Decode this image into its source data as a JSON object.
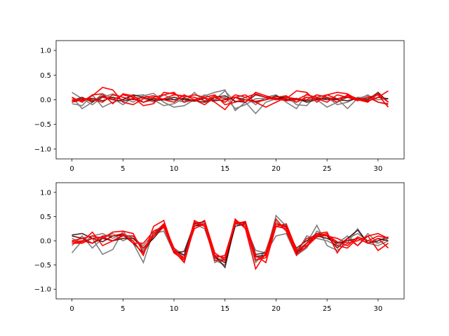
{
  "colors": {
    "series_gray": "#7f7f7f",
    "series_dark": "#3a0000",
    "series_red": "#ff0000",
    "axes": "#000000",
    "background": "#ffffff"
  },
  "chart_data": [
    {
      "type": "line",
      "title": "",
      "xlabel": "",
      "ylabel": "",
      "xlim": [
        -1.55,
        32.55
      ],
      "ylim": [
        -1.2,
        1.2
      ],
      "xticks": [
        0,
        5,
        10,
        15,
        20,
        25,
        30
      ],
      "yticks": [
        -1.0,
        -0.5,
        0.0,
        0.5,
        1.0
      ],
      "grid": false,
      "x": [
        0,
        1,
        2,
        3,
        4,
        5,
        6,
        7,
        8,
        9,
        10,
        11,
        12,
        13,
        14,
        15,
        16,
        17,
        18,
        19,
        20,
        21,
        22,
        23,
        24,
        25,
        26,
        27,
        28,
        29,
        30,
        31
      ],
      "series": [
        {
          "color": "gray",
          "values": [
            0.15,
            0.02,
            -0.1,
            0.05,
            0.12,
            0.05,
            -0.05,
            0.08,
            0.13,
            -0.05,
            -0.15,
            -0.12,
            0.0,
            0.08,
            0.15,
            0.2,
            -0.22,
            -0.05,
            -0.28,
            -0.05,
            0.02,
            0.0,
            -0.05,
            0.05,
            0.03,
            0.05,
            -0.1,
            -0.05,
            0.05,
            0.02,
            0.1,
            -0.05
          ]
        },
        {
          "color": "gray",
          "values": [
            0.05,
            -0.18,
            -0.05,
            0.12,
            0.03,
            -0.1,
            0.05,
            0.03,
            -0.05,
            0.1,
            0.0,
            -0.05,
            0.15,
            -0.05,
            0.0,
            0.05,
            -0.18,
            -0.1,
            0.02,
            0.03,
            0.0,
            0.08,
            -0.1,
            -0.12,
            0.1,
            0.05,
            0.02,
            -0.18,
            0.03,
            0.08,
            0.0,
            0.02
          ]
        },
        {
          "color": "gray",
          "values": [
            -0.08,
            -0.12,
            0.1,
            -0.15,
            -0.05,
            0.0,
            0.08,
            0.1,
            0.0,
            -0.12,
            -0.08,
            0.03,
            -0.02,
            0.1,
            0.0,
            0.18,
            -0.05,
            0.05,
            -0.1,
            0.05,
            0.1,
            -0.05,
            -0.18,
            0.12,
            0.0,
            -0.15,
            -0.05,
            0.05,
            0.0,
            0.1,
            -0.05,
            -0.1
          ]
        },
        {
          "color": "dark",
          "values": [
            -0.05,
            0.0,
            0.03,
            -0.02,
            0.05,
            0.0,
            0.1,
            0.05,
            -0.02,
            0.0,
            0.0,
            0.03,
            -0.02,
            -0.05,
            0.05,
            0.08,
            -0.03,
            -0.05,
            0.1,
            0.05,
            0.02,
            0.05,
            0.0,
            -0.02,
            0.03,
            0.0,
            0.02,
            0.05,
            0.0,
            -0.03,
            0.05,
            0.02
          ]
        },
        {
          "color": "dark",
          "values": [
            -0.02,
            0.05,
            -0.05,
            0.08,
            0.0,
            -0.03,
            0.02,
            -0.05,
            0.03,
            0.0,
            0.05,
            0.0,
            -0.03,
            0.03,
            -0.02,
            0.0,
            0.05,
            0.0,
            -0.03,
            0.0,
            0.08,
            0.0,
            0.03,
            -0.05,
            0.0,
            0.03,
            0.0,
            -0.02,
            0.03,
            0.0,
            0.15,
            -0.05
          ]
        },
        {
          "color": "red",
          "values": [
            0.0,
            -0.02,
            0.08,
            0.25,
            0.2,
            -0.05,
            -0.1,
            0.02,
            0.05,
            0.1,
            0.15,
            -0.05,
            0.0,
            -0.1,
            0.05,
            -0.05,
            0.1,
            0.05,
            0.12,
            0.05,
            0.0,
            0.02,
            0.18,
            0.15,
            -0.05,
            0.1,
            0.15,
            0.12,
            0.0,
            0.05,
            0.1,
            -0.15
          ]
        },
        {
          "color": "red",
          "values": [
            -0.05,
            0.03,
            -0.02,
            0.05,
            0.0,
            0.1,
            0.05,
            -0.12,
            -0.08,
            0.15,
            0.12,
            0.05,
            0.1,
            0.05,
            -0.05,
            -0.2,
            0.05,
            0.1,
            -0.05,
            -0.15,
            -0.05,
            0.05,
            0.02,
            0.0,
            0.1,
            0.05,
            -0.05,
            0.1,
            0.02,
            -0.02,
            0.05,
            0.18
          ]
        },
        {
          "color": "red",
          "values": [
            0.05,
            -0.05,
            0.1,
            0.12,
            -0.08,
            0.12,
            0.08,
            -0.05,
            0.0,
            0.02,
            0.1,
            0.08,
            0.05,
            -0.02,
            0.08,
            0.02,
            0.05,
            -0.05,
            0.15,
            0.08,
            0.02,
            -0.02,
            0.0,
            0.1,
            0.05,
            0.1,
            0.02,
            0.08,
            0.0,
            -0.05,
            0.12,
            -0.05
          ]
        },
        {
          "color": "red",
          "values": [
            -0.02,
            0.03,
            0.0,
            -0.05,
            0.1,
            0.05,
            0.0,
            0.05,
            0.08,
            0.0,
            -0.05,
            0.1,
            0.0,
            0.05,
            0.1,
            -0.1,
            -0.05,
            0.0,
            -0.05,
            0.0,
            0.05,
            0.08,
            -0.05,
            0.05,
            0.02,
            -0.05,
            0.1,
            0.05,
            -0.02,
            0.05,
            -0.05,
            -0.08
          ]
        }
      ]
    },
    {
      "type": "line",
      "title": "",
      "xlabel": "",
      "ylabel": "",
      "xlim": [
        -1.55,
        32.55
      ],
      "ylim": [
        -1.2,
        1.2
      ],
      "xticks": [
        0,
        5,
        10,
        15,
        20,
        25,
        30
      ],
      "yticks": [
        -1.0,
        -0.5,
        0.0,
        0.5,
        1.0
      ],
      "grid": false,
      "x": [
        0,
        1,
        2,
        3,
        4,
        5,
        6,
        7,
        8,
        9,
        10,
        11,
        12,
        13,
        14,
        15,
        16,
        17,
        18,
        19,
        20,
        21,
        22,
        23,
        24,
        25,
        26,
        27,
        28,
        29,
        30,
        31
      ],
      "series": [
        {
          "color": "gray",
          "values": [
            -0.25,
            0.0,
            0.05,
            -0.28,
            -0.18,
            0.2,
            -0.05,
            -0.45,
            0.2,
            0.3,
            -0.15,
            -0.3,
            0.4,
            0.35,
            -0.45,
            -0.35,
            0.4,
            0.35,
            -0.35,
            -0.3,
            0.52,
            0.3,
            -0.2,
            -0.05,
            0.32,
            -0.1,
            -0.2,
            -0.05,
            0.25,
            -0.05,
            -0.1,
            0.0
          ]
        },
        {
          "color": "gray",
          "values": [
            -0.1,
            0.1,
            -0.15,
            0.05,
            0.15,
            0.0,
            0.1,
            -0.2,
            0.15,
            0.28,
            -0.22,
            -0.45,
            0.3,
            0.4,
            -0.4,
            -0.5,
            0.42,
            0.3,
            -0.45,
            -0.2,
            0.4,
            0.2,
            -0.25,
            0.1,
            0.05,
            0.0,
            -0.1,
            0.05,
            0.15,
            0.0,
            -0.05,
            0.05
          ]
        },
        {
          "color": "gray",
          "values": [
            0.05,
            -0.05,
            0.1,
            0.15,
            0.05,
            0.15,
            0.05,
            -0.1,
            0.15,
            0.2,
            -0.25,
            -0.35,
            0.35,
            0.25,
            -0.35,
            -0.4,
            0.35,
            0.3,
            -0.2,
            -0.25,
            0.1,
            0.15,
            -0.3,
            -0.15,
            0.2,
            0.1,
            -0.05,
            0.1,
            -0.1,
            0.15,
            -0.05,
            0.05
          ]
        },
        {
          "color": "dark",
          "values": [
            0.12,
            0.15,
            0.05,
            -0.02,
            0.1,
            0.12,
            -0.05,
            -0.25,
            0.1,
            0.32,
            -0.25,
            -0.22,
            0.35,
            0.4,
            -0.3,
            -0.55,
            0.35,
            0.38,
            -0.28,
            -0.25,
            0.3,
            0.25,
            -0.15,
            0.0,
            0.15,
            0.1,
            -0.15,
            0.05,
            0.22,
            -0.05,
            0.05,
            0.0
          ]
        },
        {
          "color": "dark",
          "values": [
            0.1,
            0.05,
            -0.05,
            0.05,
            0.0,
            0.05,
            0.05,
            -0.15,
            0.05,
            0.3,
            -0.2,
            -0.3,
            0.3,
            0.35,
            -0.35,
            -0.45,
            0.3,
            0.35,
            -0.32,
            -0.3,
            0.35,
            0.3,
            -0.25,
            -0.05,
            0.1,
            0.05,
            -0.05,
            0.0,
            0.05,
            -0.05,
            0.0,
            0.08
          ]
        },
        {
          "color": "red",
          "values": [
            -0.05,
            -0.02,
            0.18,
            -0.1,
            0.0,
            0.12,
            0.0,
            -0.3,
            0.3,
            0.42,
            -0.2,
            -0.45,
            0.3,
            0.42,
            -0.25,
            -0.4,
            0.45,
            0.25,
            -0.58,
            -0.25,
            0.45,
            0.2,
            -0.3,
            -0.05,
            0.15,
            0.18,
            -0.25,
            0.05,
            -0.1,
            0.1,
            -0.2,
            -0.05
          ]
        },
        {
          "color": "red",
          "values": [
            0.0,
            0.05,
            0.1,
            0.05,
            0.18,
            0.2,
            0.15,
            -0.25,
            0.15,
            0.35,
            -0.15,
            -0.4,
            0.42,
            0.3,
            -0.35,
            -0.3,
            0.4,
            0.35,
            -0.4,
            -0.35,
            0.35,
            0.28,
            -0.22,
            0.05,
            0.1,
            0.15,
            -0.1,
            -0.15,
            0.05,
            -0.05,
            0.05,
            -0.15
          ]
        },
        {
          "color": "red",
          "values": [
            -0.02,
            0.0,
            -0.05,
            0.1,
            0.1,
            0.15,
            -0.05,
            -0.05,
            0.2,
            0.3,
            -0.2,
            -0.35,
            0.25,
            0.35,
            -0.3,
            -0.35,
            0.35,
            0.4,
            -0.3,
            -0.45,
            0.3,
            0.35,
            -0.18,
            -0.1,
            0.12,
            0.1,
            0.05,
            -0.05,
            0.0,
            0.1,
            0.15,
            0.05
          ]
        },
        {
          "color": "red",
          "values": [
            -0.05,
            -0.05,
            0.05,
            0.08,
            0.0,
            0.1,
            0.1,
            -0.15,
            0.1,
            0.28,
            -0.25,
            -0.4,
            0.38,
            0.3,
            -0.4,
            -0.4,
            0.38,
            0.3,
            -0.4,
            -0.3,
            0.3,
            0.25,
            -0.28,
            -0.12,
            0.08,
            0.12,
            -0.02,
            -0.1,
            0.08,
            0.0,
            0.1,
            0.05
          ]
        }
      ]
    }
  ]
}
